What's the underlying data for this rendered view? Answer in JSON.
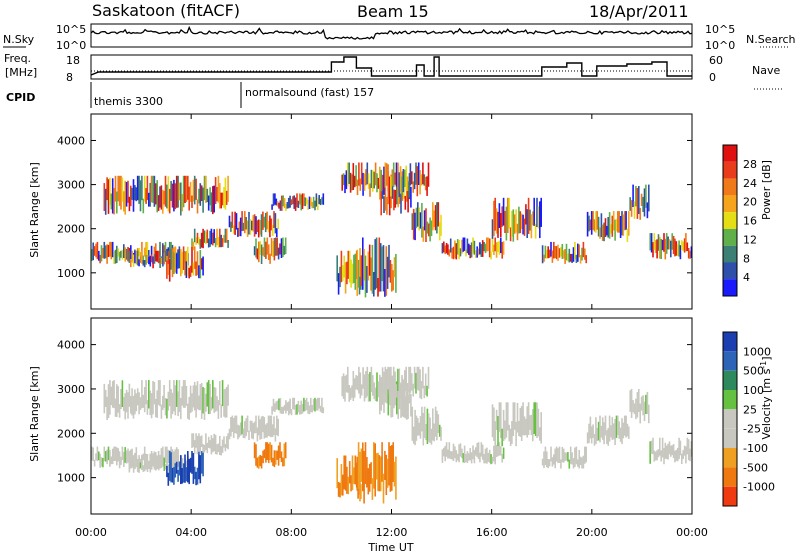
{
  "chart_data": [
    {
      "type": "line",
      "header": {
        "station": "Saskatoon (fitACF)",
        "beam": "Beam 15",
        "date": "18/Apr/2011"
      },
      "panel": "noise",
      "left_label": "N.Sky",
      "right_label": "N.Search",
      "left_ticks": [
        "10^5",
        "10^0"
      ],
      "right_ticks": [
        "10^5",
        "10^0"
      ]
    },
    {
      "type": "line",
      "panel": "frequency",
      "left_label_lines": [
        "Freq.",
        "[MHz]"
      ],
      "right_label": "Nave",
      "left_ticks": [
        "18",
        "8"
      ],
      "right_ticks": [
        "60",
        "0"
      ]
    },
    {
      "type": "table",
      "panel": "cpid",
      "label": "CPID",
      "programs": [
        {
          "name": "themis 3300",
          "start_hour": 0
        },
        {
          "name": "normalsound (fast) 157",
          "start_hour": 6
        }
      ]
    },
    {
      "type": "heatmap",
      "panel": "power",
      "ylabel": "Slant Range [km]",
      "yticks": [
        "1000",
        "2000",
        "3000",
        "4000"
      ],
      "ylim": [
        180,
        4600
      ],
      "colorbar": {
        "label": "Power [dB]",
        "ticks": [
          "4",
          "8",
          "12",
          "16",
          "20",
          "24",
          "28"
        ],
        "colors": [
          "#1a1aff",
          "#2e4faa",
          "#3c7f74",
          "#5fb04a",
          "#e5de14",
          "#f6a41c",
          "#f07a1a",
          "#e83c1c",
          "#e01010"
        ]
      }
    },
    {
      "type": "heatmap",
      "panel": "velocity",
      "ylabel": "Slant Range [km]",
      "yticks": [
        "1000",
        "2000",
        "3000",
        "4000"
      ],
      "ylim": [
        180,
        4600
      ],
      "colorbar": {
        "label_main": "Velocity  [m s",
        "label_sup": "-1",
        "label_end": "]",
        "ticks": [
          "1000",
          "500",
          "100",
          "25",
          "-25",
          "-100",
          "-500",
          "-1000"
        ],
        "colors": [
          "#1b3fb0",
          "#2e64b8",
          "#2e8a5c",
          "#65c240",
          "#c8c8c0",
          "#c8c8c0",
          "#f0a020",
          "#f07810",
          "#f03a10"
        ]
      },
      "xlabel": "Time UT",
      "xticks": [
        "00:00",
        "04:00",
        "08:00",
        "12:00",
        "16:00",
        "20:00",
        "00:00"
      ],
      "xlim": [
        0,
        24
      ]
    }
  ]
}
